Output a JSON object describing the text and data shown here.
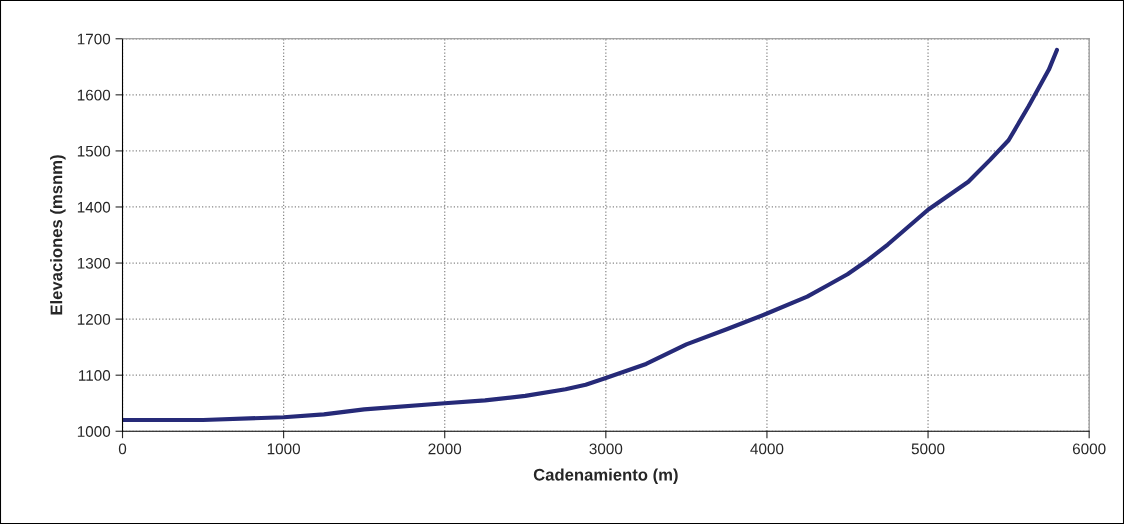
{
  "chart_data": {
    "type": "line",
    "xlabel": "Cadenamiento (m)",
    "ylabel": "Elevaciones (msnm)",
    "x": [
      0,
      500,
      1000,
      1250,
      1500,
      2000,
      2250,
      2500,
      2750,
      2875,
      3000,
      3250,
      3500,
      3750,
      4000,
      4250,
      4375,
      4500,
      4625,
      4750,
      5000,
      5250,
      5385,
      5500,
      5625,
      5750,
      5800
    ],
    "series": [
      {
        "color": "#262a78",
        "values": [
          1020,
          1020,
          1025,
          1030,
          1039,
          1050,
          1055,
          1063,
          1075,
          1083,
          1095,
          1120,
          1155,
          1182,
          1210,
          1240,
          1260,
          1280,
          1305,
          1333,
          1395,
          1445,
          1484,
          1519,
          1580,
          1645,
          1680
        ]
      }
    ],
    "xlim": [
      0,
      6000
    ],
    "xticks": [
      0,
      1000,
      2000,
      3000,
      4000,
      5000,
      6000
    ],
    "ylim": [
      1000,
      1700
    ],
    "yticks": [
      1000,
      1100,
      1200,
      1300,
      1400,
      1500,
      1600,
      1700
    ],
    "grid": true,
    "legend": false,
    "marker": "none",
    "line_style": "solid"
  }
}
